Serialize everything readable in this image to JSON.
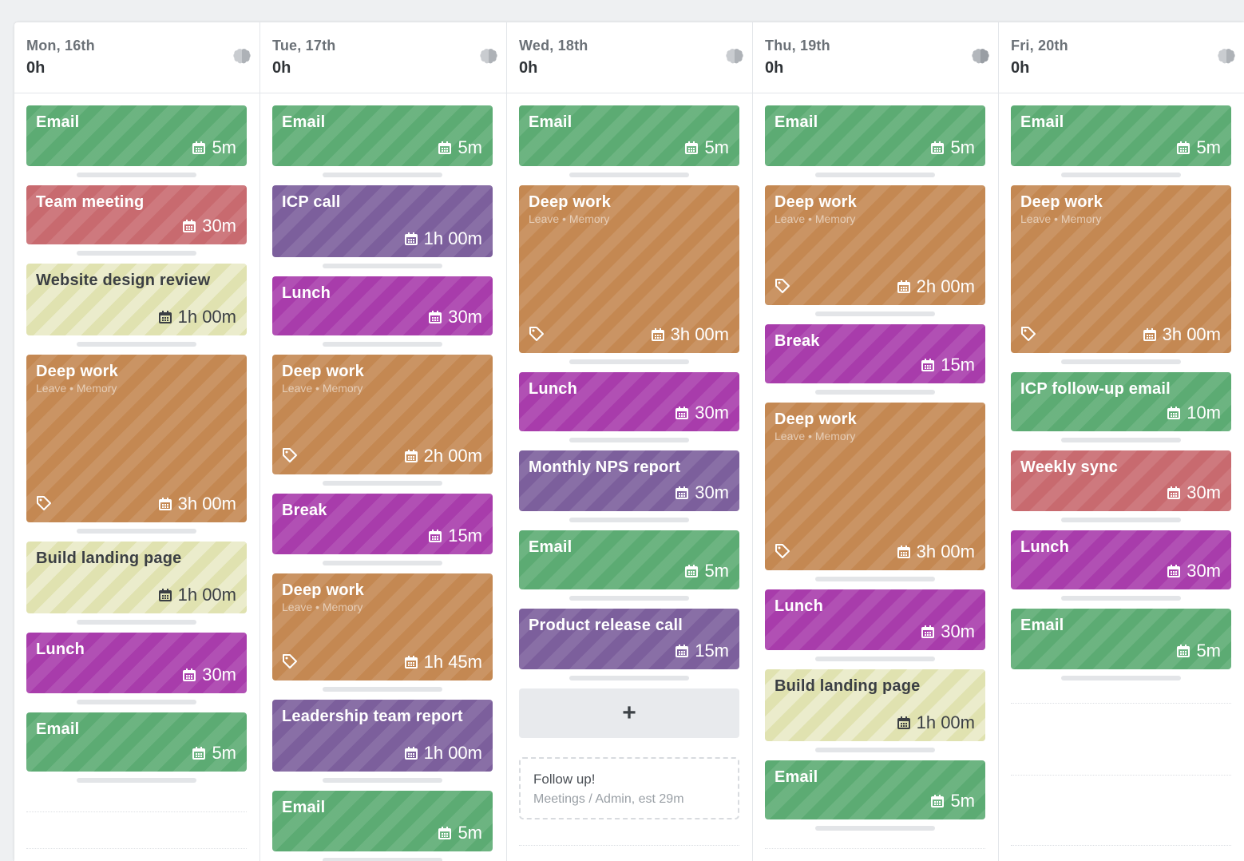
{
  "days": [
    {
      "title": "Mon, 16th",
      "hours": "0h",
      "cards": [
        {
          "title": "Email",
          "duration": "5m",
          "color": "green"
        },
        {
          "title": "Team meeting",
          "duration": "30m",
          "color": "red"
        },
        {
          "title": "Website design review",
          "duration": "1h 00m",
          "color": "yellow"
        },
        {
          "title": "Deep work",
          "subtitle": "Leave • Memory",
          "duration": "3h 00m",
          "color": "orange",
          "tag": true
        },
        {
          "title": "Build landing page",
          "duration": "1h 00m",
          "color": "yellow"
        },
        {
          "title": "Lunch",
          "duration": "30m",
          "color": "magenta"
        },
        {
          "title": "Email",
          "duration": "5m",
          "color": "green"
        }
      ]
    },
    {
      "title": "Tue, 17th",
      "hours": "0h",
      "cards": [
        {
          "title": "Email",
          "duration": "5m",
          "color": "green"
        },
        {
          "title": "ICP call",
          "duration": "1h 00m",
          "color": "purple"
        },
        {
          "title": "Lunch",
          "duration": "30m",
          "color": "magenta"
        },
        {
          "title": "Deep work",
          "subtitle": "Leave • Memory",
          "duration": "2h 00m",
          "color": "orange",
          "tag": true
        },
        {
          "title": "Break",
          "duration": "15m",
          "color": "magenta"
        },
        {
          "title": "Deep work",
          "subtitle": "Leave • Memory",
          "duration": "1h 45m",
          "color": "orange",
          "tag": true
        },
        {
          "title": "Leadership team report",
          "duration": "1h 00m",
          "color": "purple"
        },
        {
          "title": "Email",
          "duration": "5m",
          "color": "green"
        }
      ]
    },
    {
      "title": "Wed, 18th",
      "hours": "0h",
      "cards": [
        {
          "title": "Email",
          "duration": "5m",
          "color": "green"
        },
        {
          "title": "Deep work",
          "subtitle": "Leave • Memory",
          "duration": "3h 00m",
          "color": "orange",
          "tag": true
        },
        {
          "title": "Lunch",
          "duration": "30m",
          "color": "magenta"
        },
        {
          "title": "Monthly NPS report",
          "duration": "30m",
          "color": "purple"
        },
        {
          "title": "Email",
          "duration": "5m",
          "color": "green"
        },
        {
          "title": "Product release call",
          "duration": "15m",
          "color": "purple"
        }
      ],
      "add_label": "+",
      "followup": {
        "title": "Follow up!",
        "subtitle": "Meetings / Admin, est 29m"
      }
    },
    {
      "title": "Thu, 19th",
      "hours": "0h",
      "cards": [
        {
          "title": "Email",
          "duration": "5m",
          "color": "green"
        },
        {
          "title": "Deep work",
          "subtitle": "Leave • Memory",
          "duration": "2h 00m",
          "color": "orange",
          "tag": true
        },
        {
          "title": "Break",
          "duration": "15m",
          "color": "magenta"
        },
        {
          "title": "Deep work",
          "subtitle": "Leave • Memory",
          "duration": "3h 00m",
          "color": "orange",
          "tag": true
        },
        {
          "title": "Lunch",
          "duration": "30m",
          "color": "magenta"
        },
        {
          "title": "Build landing page",
          "duration": "1h 00m",
          "color": "yellow"
        },
        {
          "title": "Email",
          "duration": "5m",
          "color": "green"
        }
      ]
    },
    {
      "title": "Fri, 20th",
      "hours": "0h",
      "cards": [
        {
          "title": "Email",
          "duration": "5m",
          "color": "green"
        },
        {
          "title": "Deep work",
          "subtitle": "Leave • Memory",
          "duration": "3h 00m",
          "color": "orange",
          "tag": true
        },
        {
          "title": "ICP follow-up email",
          "duration": "10m",
          "color": "green"
        },
        {
          "title": "Weekly sync",
          "duration": "30m",
          "color": "red"
        },
        {
          "title": "Lunch",
          "duration": "30m",
          "color": "magenta"
        },
        {
          "title": "Email",
          "duration": "5m",
          "color": "green"
        }
      ]
    }
  ],
  "icons": {
    "calendar": "calendar-icon",
    "tag": "tag-icon",
    "brain": "brain-icon"
  }
}
